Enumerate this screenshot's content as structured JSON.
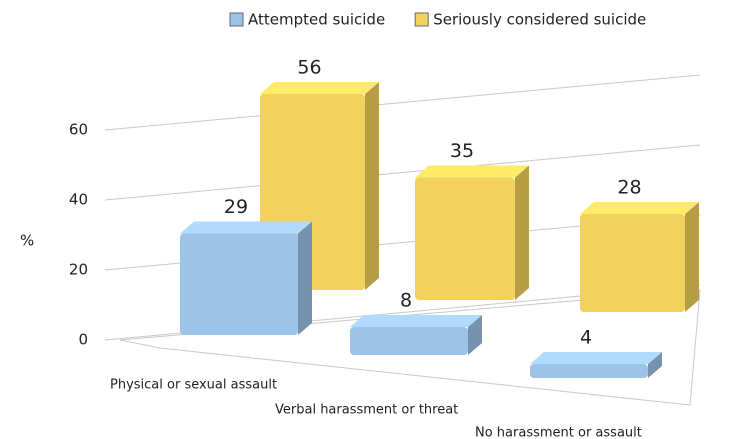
{
  "chart_data": {
    "type": "bar3d",
    "categories": [
      "Physical or sexual assault",
      "Verbal harassment or threat",
      "No harassment or assault"
    ],
    "series": [
      {
        "name": "Attempted suicide",
        "color": "#9dc3e6",
        "values": [
          29,
          8,
          4
        ]
      },
      {
        "name": "Seriously considered suicide",
        "color": "#f2d25c",
        "values": [
          56,
          35,
          28
        ]
      }
    ],
    "y_label": "%",
    "ylim": [
      0,
      70
    ],
    "yticks": [
      0,
      20,
      40,
      60
    ],
    "grid": true,
    "legend": "top"
  }
}
